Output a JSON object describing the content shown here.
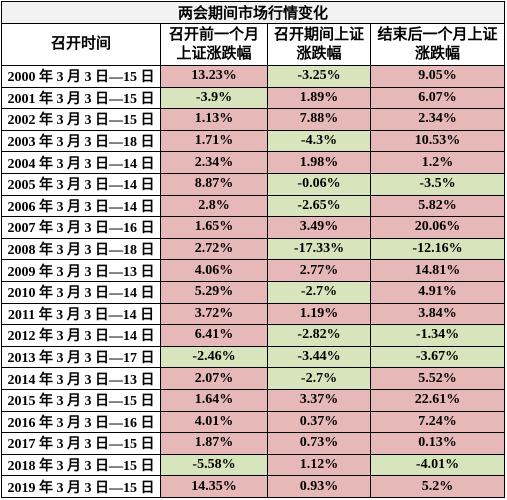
{
  "title": "两会期间市场行情变化",
  "header": [
    [
      "召开时间"
    ],
    [
      "召开前一个月",
      "上证涨跌幅"
    ],
    [
      "召开期间上证",
      "涨跌幅"
    ],
    [
      "结束后一个月上证",
      "涨跌幅"
    ]
  ],
  "rows": [
    [
      "2000 年 3 月 3 日—15 日",
      "13.23%",
      "-3.25%",
      "9.05%"
    ],
    [
      "2001 年 3 月 3 日—15 日",
      "-3.9%",
      "1.89%",
      "6.07%"
    ],
    [
      "2002 年 3 月 3 日—15 日",
      "1.13%",
      "7.88%",
      "2.34%"
    ],
    [
      "2003 年 3 月 3 日—18 日",
      "1.71%",
      "-4.3%",
      "10.53%"
    ],
    [
      "2004 年 3 月 3 日—14 日",
      "2.34%",
      "1.98%",
      "1.2%"
    ],
    [
      "2005 年 3 月 3 日—14 日",
      "8.87%",
      "-0.06%",
      "-3.5%"
    ],
    [
      "2006 年 3 月 3 日—14 日",
      "2.8%",
      "-2.65%",
      "5.82%"
    ],
    [
      "2007 年 3 月 3 日—16 日",
      "1.65%",
      "3.49%",
      "20.06%"
    ],
    [
      "2008 年 3 月 3 日—18 日",
      "2.72%",
      "-17.33%",
      "-12.16%"
    ],
    [
      "2009 年 3 月 3 日—13 日",
      "4.06%",
      "2.77%",
      "14.81%"
    ],
    [
      "2010 年 3 月 3 日—14 日",
      "5.29%",
      "-2.7%",
      "4.91%"
    ],
    [
      "2011 年 3 月 3 日—14 日",
      "3.72%",
      "1.19%",
      "3.84%"
    ],
    [
      "2012 年 3 月 3 日—14 日",
      "6.41%",
      "-2.82%",
      "-1.34%"
    ],
    [
      "2013 年 3 月 3 日—17 日",
      "-2.46%",
      "-3.44%",
      "-3.67%"
    ],
    [
      "2014 年 3 月 3 日—13 日",
      "2.07%",
      "-2.7%",
      "5.52%"
    ],
    [
      "2015 年 3 月 3 日—15 日",
      "1.64%",
      "3.37%",
      "22.61%"
    ],
    [
      "2016 年 3 月 3 日—16 日",
      "4.01%",
      "0.37%",
      "7.24%"
    ],
    [
      "2017 年 3 月 3 日—15 日",
      "1.87%",
      "0.73%",
      "0.13%"
    ],
    [
      "2018 年 3 月 3 日—15 日",
      "-5.58%",
      "1.12%",
      "-4.01%"
    ],
    [
      "2019 年 3 月 3 日—15 日",
      "14.35%",
      "0.93%",
      "5.2%"
    ]
  ]
}
